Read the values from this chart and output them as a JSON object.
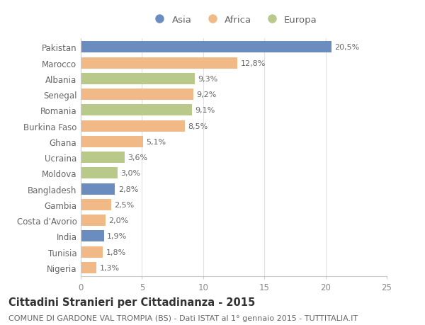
{
  "countries": [
    "Pakistan",
    "Marocco",
    "Albania",
    "Senegal",
    "Romania",
    "Burkina Faso",
    "Ghana",
    "Ucraina",
    "Moldova",
    "Bangladesh",
    "Gambia",
    "Costa d'Avorio",
    "India",
    "Tunisia",
    "Nigeria"
  ],
  "values": [
    20.5,
    12.8,
    9.3,
    9.2,
    9.1,
    8.5,
    5.1,
    3.6,
    3.0,
    2.8,
    2.5,
    2.0,
    1.9,
    1.8,
    1.3
  ],
  "labels": [
    "20,5%",
    "12,8%",
    "9,3%",
    "9,2%",
    "9,1%",
    "8,5%",
    "5,1%",
    "3,6%",
    "3,0%",
    "2,8%",
    "2,5%",
    "2,0%",
    "1,9%",
    "1,8%",
    "1,3%"
  ],
  "continents": [
    "Asia",
    "Africa",
    "Europa",
    "Africa",
    "Europa",
    "Africa",
    "Africa",
    "Europa",
    "Europa",
    "Asia",
    "Africa",
    "Africa",
    "Asia",
    "Africa",
    "Africa"
  ],
  "colors": {
    "Asia": "#6b8cbe",
    "Africa": "#f0b986",
    "Europa": "#b8c98a"
  },
  "legend_labels": [
    "Asia",
    "Africa",
    "Europa"
  ],
  "legend_colors": [
    "#6b8cbe",
    "#f0b986",
    "#b8c98a"
  ],
  "title": "Cittadini Stranieri per Cittadinanza - 2015",
  "subtitle": "COMUNE DI GARDONE VAL TROMPIA (BS) - Dati ISTAT al 1° gennaio 2015 - TUTTITALIA.IT",
  "xlim": [
    0,
    25
  ],
  "xticks": [
    0,
    5,
    10,
    15,
    20,
    25
  ],
  "background_color": "#ffffff",
  "bar_height": 0.72,
  "grid_color": "#e0e0e0",
  "title_fontsize": 10.5,
  "subtitle_fontsize": 8,
  "tick_fontsize": 8.5,
  "label_fontsize": 8,
  "legend_fontsize": 9.5
}
